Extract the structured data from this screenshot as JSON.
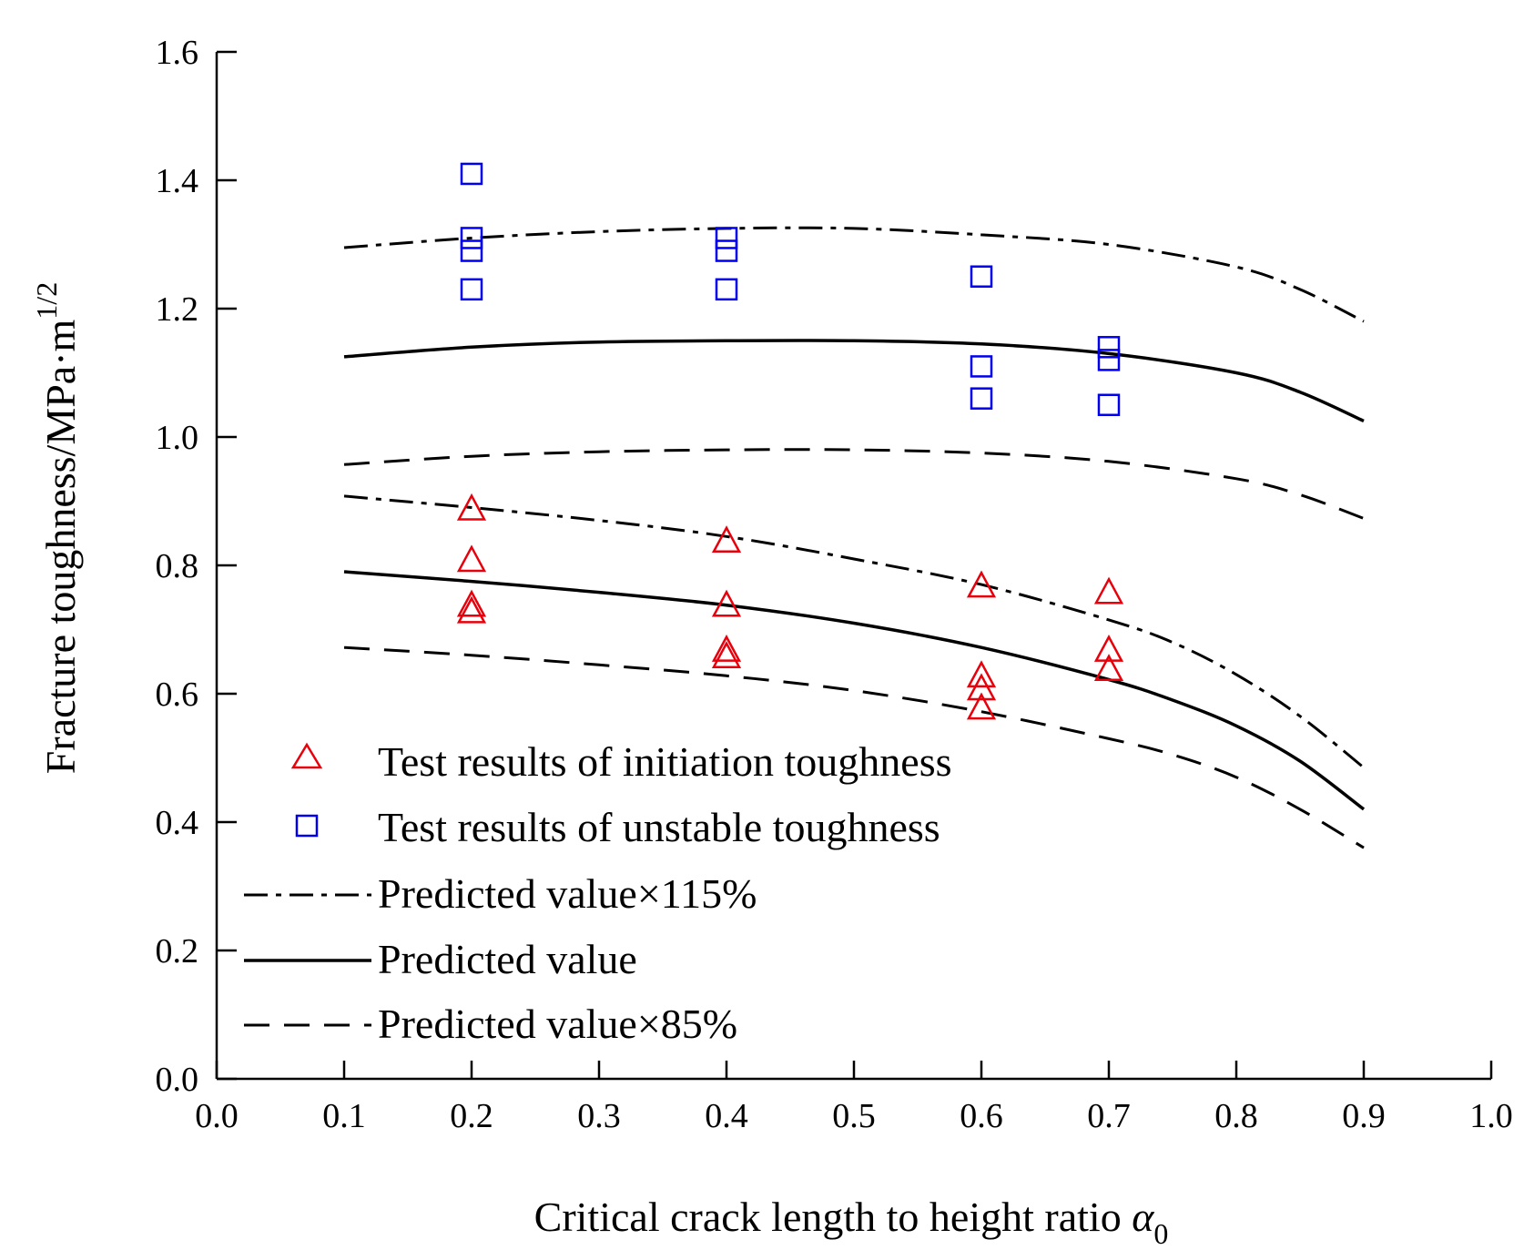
{
  "chart_data": {
    "type": "scatter",
    "title": "",
    "xlabel": "Critical crack length to height ratio",
    "xlabel_symbol": "α",
    "xlabel_subscript": "0",
    "ylabel": "Fracture toughness/MPa·m",
    "ylabel_superscript": "1/2",
    "xlim": [
      0.0,
      1.0
    ],
    "ylim": [
      0.0,
      1.6
    ],
    "x_ticks": [
      "0.0",
      "0.1",
      "0.2",
      "0.3",
      "0.4",
      "0.5",
      "0.6",
      "0.7",
      "0.8",
      "0.9",
      "1.0"
    ],
    "y_ticks": [
      "0.0",
      "0.2",
      "0.4",
      "0.6",
      "0.8",
      "1.0",
      "1.2",
      "1.4",
      "1.6"
    ],
    "grid": false,
    "legend_position": "bottom-left",
    "series": [
      {
        "name": "Test results of initiation toughness",
        "kind": "scatter",
        "marker": "triangle",
        "color": "#e8000b",
        "points": [
          [
            0.2,
            0.89
          ],
          [
            0.2,
            0.81
          ],
          [
            0.2,
            0.74
          ],
          [
            0.2,
            0.73
          ],
          [
            0.4,
            0.84
          ],
          [
            0.4,
            0.74
          ],
          [
            0.4,
            0.67
          ],
          [
            0.4,
            0.66
          ],
          [
            0.6,
            0.77
          ],
          [
            0.6,
            0.63
          ],
          [
            0.6,
            0.61
          ],
          [
            0.6,
            0.58
          ],
          [
            0.7,
            0.76
          ],
          [
            0.7,
            0.67
          ],
          [
            0.7,
            0.64
          ]
        ]
      },
      {
        "name": "Test results of unstable toughness",
        "kind": "scatter",
        "marker": "square",
        "color": "#0000ee",
        "points": [
          [
            0.2,
            1.41
          ],
          [
            0.2,
            1.31
          ],
          [
            0.2,
            1.29
          ],
          [
            0.2,
            1.23
          ],
          [
            0.4,
            1.31
          ],
          [
            0.4,
            1.29
          ],
          [
            0.4,
            1.23
          ],
          [
            0.6,
            1.25
          ],
          [
            0.6,
            1.11
          ],
          [
            0.6,
            1.06
          ],
          [
            0.7,
            1.14
          ],
          [
            0.7,
            1.12
          ],
          [
            0.7,
            1.05
          ]
        ]
      },
      {
        "name": "Predicted value×115%",
        "kind": "line",
        "dash": "dashdot",
        "color": "#000000",
        "curves": [
          {
            "x": [
              0.1,
              0.2,
              0.3,
              0.4,
              0.5,
              0.6,
              0.7,
              0.8,
              0.85,
              0.9
            ],
            "y": [
              1.295,
              1.31,
              1.32,
              1.325,
              1.325,
              1.315,
              1.3,
              1.265,
              1.23,
              1.18
            ]
          },
          {
            "x": [
              0.1,
              0.2,
              0.3,
              0.4,
              0.5,
              0.6,
              0.7,
              0.75,
              0.8,
              0.85,
              0.9
            ],
            "y": [
              0.908,
              0.89,
              0.87,
              0.845,
              0.81,
              0.77,
              0.715,
              0.68,
              0.63,
              0.565,
              0.485
            ]
          }
        ]
      },
      {
        "name": "Predicted value",
        "kind": "line",
        "dash": "solid",
        "color": "#000000",
        "curves": [
          {
            "x": [
              0.1,
              0.2,
              0.3,
              0.4,
              0.5,
              0.6,
              0.7,
              0.8,
              0.85,
              0.9
            ],
            "y": [
              1.125,
              1.14,
              1.148,
              1.15,
              1.15,
              1.145,
              1.13,
              1.1,
              1.07,
              1.025
            ]
          },
          {
            "x": [
              0.1,
              0.2,
              0.3,
              0.4,
              0.5,
              0.6,
              0.7,
              0.75,
              0.8,
              0.85,
              0.9
            ],
            "y": [
              0.79,
              0.775,
              0.758,
              0.738,
              0.71,
              0.672,
              0.622,
              0.59,
              0.55,
              0.495,
              0.42
            ]
          }
        ]
      },
      {
        "name": "Predicted value×85%",
        "kind": "line",
        "dash": "dashed",
        "color": "#000000",
        "curves": [
          {
            "x": [
              0.1,
              0.2,
              0.3,
              0.4,
              0.5,
              0.6,
              0.7,
              0.8,
              0.85,
              0.9
            ],
            "y": [
              0.957,
              0.97,
              0.977,
              0.98,
              0.98,
              0.975,
              0.962,
              0.935,
              0.91,
              0.873
            ]
          },
          {
            "x": [
              0.1,
              0.2,
              0.3,
              0.4,
              0.5,
              0.6,
              0.7,
              0.75,
              0.8,
              0.85,
              0.9
            ],
            "y": [
              0.672,
              0.66,
              0.645,
              0.628,
              0.605,
              0.572,
              0.53,
              0.505,
              0.47,
              0.42,
              0.36
            ]
          }
        ]
      }
    ]
  }
}
